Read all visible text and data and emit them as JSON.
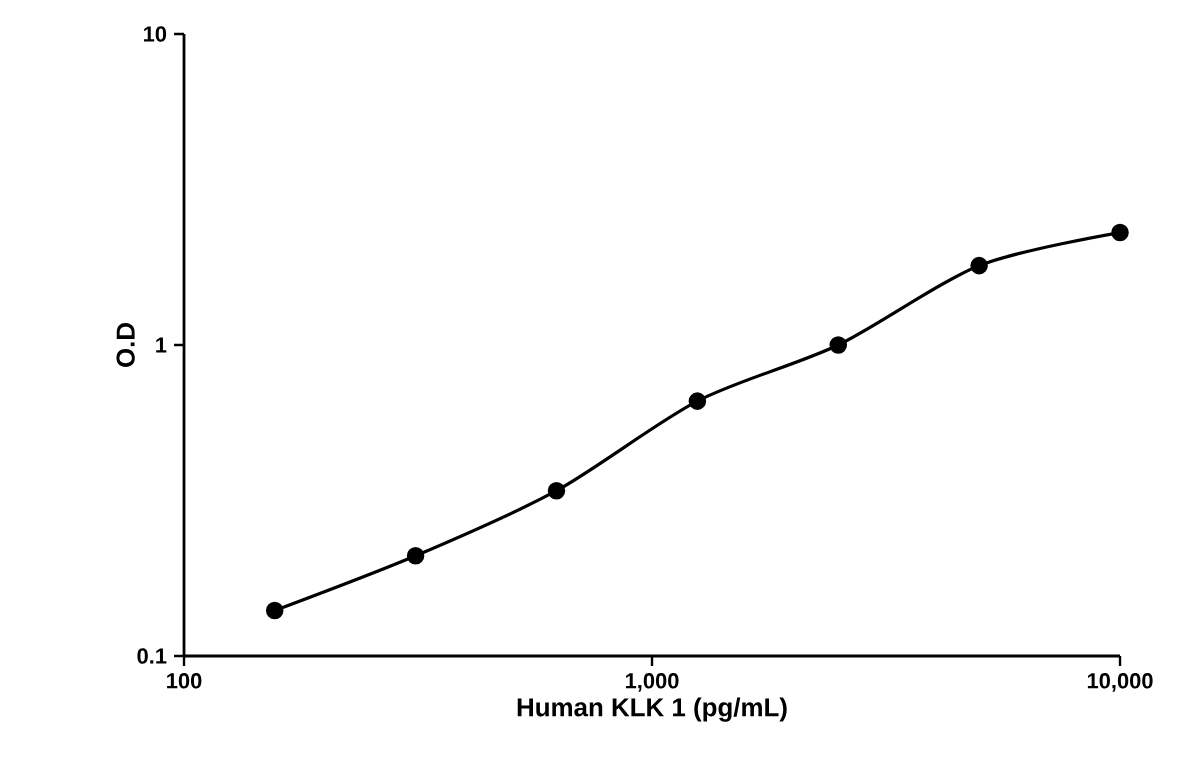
{
  "chart_data": {
    "type": "line",
    "xlabel": "Human KLK 1 (pg/mL)",
    "ylabel": "O.D",
    "x": [
      156.25,
      312.5,
      625,
      1250,
      2500,
      5000,
      10000
    ],
    "series": [
      {
        "color": "#000000",
        "values": [
          0.14,
          0.21,
          0.34,
          0.66,
          1.0,
          1.8,
          2.3
        ]
      }
    ],
    "log": "xy",
    "xlim": [
      100,
      10000
    ],
    "ylim": [
      0.1,
      10
    ],
    "xticks": [
      100,
      {
        "value": 1000,
        "label": "1,000"
      },
      {
        "value": 10000,
        "label": "10,000"
      }
    ],
    "yticks": [
      0.1,
      1,
      10
    ],
    "marker": "circle",
    "line_style": "solid"
  }
}
